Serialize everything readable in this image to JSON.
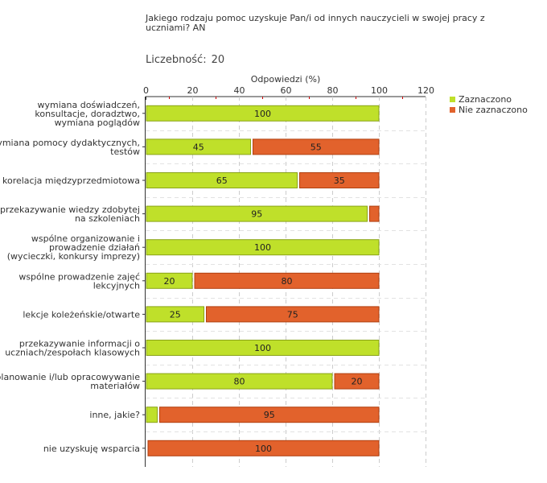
{
  "title": "Jakiego rodzaju pomoc uzyskuje Pan/i od innych nauczycieli w swojej pracy z uczniami? AN",
  "count": {
    "label": "Liczebność:",
    "value": "20"
  },
  "colors": {
    "green": "#bfe02a",
    "green_border": "#8aa318",
    "orange": "#e2622c",
    "orange_border": "#b04010",
    "grid": "#cccccc",
    "axis": "#333333",
    "tick_red": "#cc0000"
  },
  "chart_data": {
    "type": "bar",
    "orientation": "horizontal",
    "stacked": true,
    "title": "Jakiego rodzaju pomoc uzyskuje Pan/i od innych nauczycieli w swojej pracy z uczniami? AN",
    "xlabel": "Odpowiedzi (%)",
    "ylabel": "",
    "xlim": [
      0,
      120
    ],
    "xticks": [
      0,
      20,
      40,
      60,
      80,
      100,
      120
    ],
    "grid": true,
    "legend_position": "top-right",
    "categories": [
      [
        "wymiana doświadczeń,",
        "konsultacje, doradztwo,",
        "wymiana poglądów"
      ],
      [
        "wymiana pomocy dydaktycznych,",
        "testów"
      ],
      [
        "korelacja międzyprzedmiotowa"
      ],
      [
        "przekazywanie wiedzy zdobytej",
        "na szkoleniach"
      ],
      [
        "wspólne organizowanie i",
        "prowadzenie działań",
        "(wycieczki, konkursy imprezy)"
      ],
      [
        "wspólne prowadzenie zajęć",
        "lekcyjnych"
      ],
      [
        "lekcje koleżeńskie/otwarte"
      ],
      [
        "przekazywanie informacji o",
        "uczniach/zespołach klasowych"
      ],
      [
        "planowanie i/lub opracowywanie",
        "materiałów"
      ],
      [
        "inne, jakie?"
      ],
      [
        "nie uzyskuję wsparcia"
      ]
    ],
    "series": [
      {
        "name": "Zaznaczono",
        "color": "#bfe02a",
        "values": [
          100,
          45,
          65,
          95,
          100,
          20,
          25,
          100,
          80,
          5,
          0
        ],
        "labels": [
          "100",
          "45",
          "65",
          "95",
          "100",
          "20",
          "25",
          "100",
          "80",
          "",
          ""
        ]
      },
      {
        "name": "Nie zaznaczono",
        "color": "#e2622c",
        "values": [
          0,
          55,
          35,
          5,
          0,
          80,
          75,
          0,
          20,
          95,
          100
        ],
        "labels": [
          "",
          "55",
          "35",
          "",
          "",
          "80",
          "75",
          "",
          "20",
          "95",
          "100"
        ]
      }
    ]
  }
}
